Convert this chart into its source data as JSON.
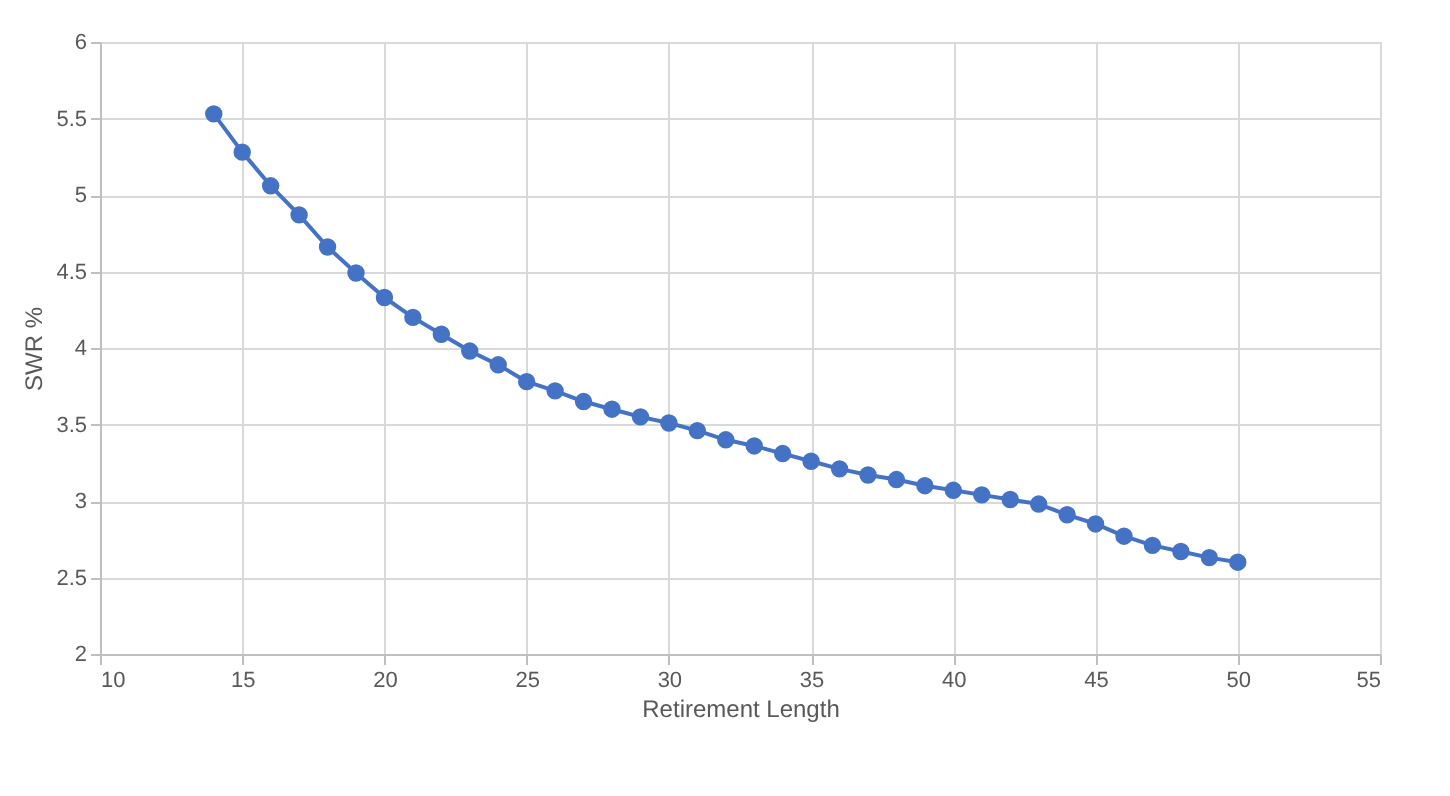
{
  "chart_data": {
    "type": "line",
    "xlabel": "Retirement Length",
    "ylabel": "SWR %",
    "x": [
      14,
      15,
      16,
      17,
      18,
      19,
      20,
      21,
      22,
      23,
      24,
      25,
      26,
      27,
      28,
      29,
      30,
      31,
      32,
      33,
      34,
      35,
      36,
      37,
      38,
      39,
      40,
      41,
      42,
      43,
      44,
      45,
      46,
      47,
      48,
      49,
      50
    ],
    "series": [
      {
        "color": "#4472c4",
        "values": [
          5.53,
          5.28,
          5.06,
          4.87,
          4.66,
          4.49,
          4.33,
          4.2,
          4.09,
          3.98,
          3.89,
          3.78,
          3.72,
          3.65,
          3.6,
          3.55,
          3.51,
          3.46,
          3.4,
          3.36,
          3.31,
          3.26,
          3.21,
          3.17,
          3.14,
          3.1,
          3.07,
          3.04,
          3.01,
          2.98,
          2.91,
          2.85,
          2.77,
          2.71,
          2.67,
          2.63,
          2.6
        ]
      }
    ],
    "xlim": [
      10,
      55
    ],
    "xticks": [
      10,
      15,
      20,
      25,
      30,
      35,
      40,
      45,
      50,
      55
    ],
    "ylim": [
      2,
      6
    ],
    "yticks": [
      2,
      2.5,
      3,
      3.5,
      4,
      4.5,
      5,
      5.5,
      6
    ],
    "grid": true,
    "marker": "circle",
    "line_style": "solid"
  }
}
